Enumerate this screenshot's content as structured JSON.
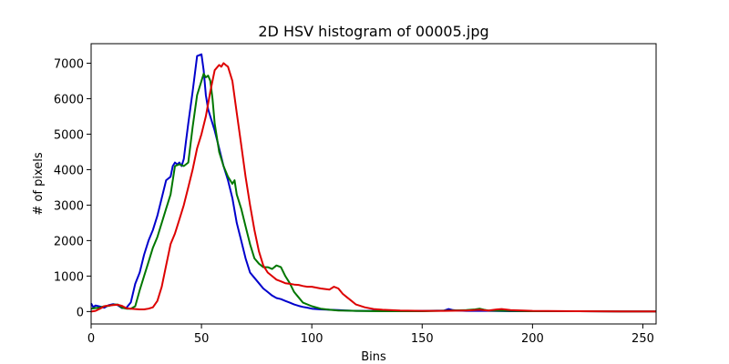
{
  "chart_data": {
    "type": "line",
    "title": "2D HSV histogram of 00005.jpg",
    "xlabel": "Bins",
    "ylabel": "# of pixels",
    "xlim": [
      0,
      256
    ],
    "ylim": [
      -350,
      7550
    ],
    "xticks": [
      0,
      50,
      100,
      150,
      200,
      250
    ],
    "yticks": [
      0,
      1000,
      2000,
      3000,
      4000,
      5000,
      6000,
      7000
    ],
    "grid": false,
    "legend": "none",
    "series": [
      {
        "color": "#0000cc",
        "x": [
          0,
          1,
          2,
          4,
          6,
          8,
          10,
          12,
          14,
          16,
          18,
          20,
          22,
          24,
          26,
          28,
          30,
          32,
          34,
          36,
          37,
          38,
          39,
          40,
          41,
          42,
          43,
          44,
          46,
          48,
          50,
          51,
          52,
          53,
          54,
          56,
          58,
          60,
          62,
          64,
          66,
          68,
          70,
          72,
          74,
          76,
          78,
          80,
          82,
          84,
          86,
          88,
          90,
          92,
          94,
          96,
          98,
          100,
          104,
          108,
          112,
          116,
          120,
          130,
          140,
          150,
          160,
          162,
          164,
          166,
          170,
          175,
          180,
          190,
          200,
          220,
          240,
          256
        ],
        "y": [
          230,
          120,
          170,
          140,
          110,
          180,
          210,
          180,
          100,
          110,
          260,
          780,
          1100,
          1600,
          2000,
          2300,
          2700,
          3200,
          3700,
          3800,
          4100,
          4200,
          4150,
          4200,
          4100,
          4300,
          4800,
          5300,
          6200,
          7200,
          7250,
          6800,
          6100,
          5700,
          5500,
          5100,
          4600,
          4100,
          3700,
          3200,
          2500,
          2000,
          1500,
          1100,
          950,
          800,
          650,
          550,
          450,
          380,
          350,
          300,
          250,
          200,
          160,
          130,
          110,
          80,
          60,
          50,
          40,
          30,
          20,
          20,
          20,
          20,
          30,
          70,
          40,
          30,
          20,
          20,
          20,
          10,
          10,
          10,
          5,
          5
        ]
      },
      {
        "color": "#007700",
        "x": [
          0,
          2,
          4,
          6,
          8,
          10,
          12,
          14,
          16,
          18,
          20,
          22,
          24,
          26,
          28,
          30,
          32,
          34,
          36,
          38,
          40,
          42,
          44,
          46,
          48,
          50,
          51,
          52,
          53,
          54,
          55,
          56,
          58,
          60,
          62,
          64,
          65,
          66,
          68,
          70,
          72,
          74,
          76,
          78,
          80,
          82,
          84,
          86,
          88,
          90,
          92,
          94,
          96,
          100,
          104,
          108,
          112,
          120,
          130,
          150,
          170,
          174,
          176,
          178,
          180,
          190,
          200,
          220,
          240,
          256
        ],
        "y": [
          80,
          100,
          110,
          150,
          160,
          190,
          200,
          110,
          80,
          80,
          150,
          600,
          1000,
          1400,
          1800,
          2100,
          2500,
          2900,
          3300,
          4100,
          4150,
          4100,
          4200,
          5200,
          6100,
          6500,
          6700,
          6600,
          6650,
          6500,
          6000,
          5300,
          4500,
          4100,
          3800,
          3600,
          3700,
          3300,
          2900,
          2400,
          1900,
          1500,
          1350,
          1250,
          1250,
          1200,
          1300,
          1250,
          1000,
          800,
          550,
          400,
          250,
          150,
          80,
          50,
          30,
          20,
          10,
          10,
          40,
          60,
          80,
          50,
          30,
          20,
          10,
          10,
          5,
          5
        ]
      },
      {
        "color": "#dd0000",
        "x": [
          0,
          2,
          4,
          6,
          8,
          10,
          12,
          14,
          16,
          18,
          20,
          22,
          24,
          26,
          28,
          30,
          32,
          34,
          36,
          38,
          40,
          42,
          44,
          46,
          48,
          50,
          52,
          54,
          56,
          58,
          59,
          60,
          61,
          62,
          64,
          66,
          68,
          70,
          72,
          74,
          76,
          78,
          80,
          82,
          84,
          86,
          88,
          90,
          92,
          94,
          96,
          98,
          100,
          104,
          108,
          110,
          112,
          114,
          116,
          118,
          120,
          124,
          128,
          132,
          140,
          150,
          160,
          170,
          176,
          180,
          184,
          186,
          190,
          200,
          220,
          240,
          256
        ],
        "y": [
          0,
          20,
          80,
          150,
          170,
          180,
          190,
          160,
          90,
          80,
          70,
          60,
          60,
          80,
          120,
          300,
          700,
          1300,
          1900,
          2200,
          2600,
          3000,
          3500,
          4000,
          4600,
          5000,
          5500,
          6200,
          6800,
          6950,
          6900,
          7000,
          6950,
          6900,
          6500,
          5600,
          4700,
          3800,
          3000,
          2300,
          1700,
          1300,
          1100,
          1000,
          900,
          850,
          800,
          780,
          760,
          750,
          720,
          700,
          700,
          650,
          620,
          700,
          650,
          500,
          400,
          300,
          200,
          120,
          70,
          50,
          30,
          20,
          20,
          30,
          50,
          30,
          60,
          70,
          40,
          20,
          10,
          5,
          5
        ]
      }
    ]
  }
}
